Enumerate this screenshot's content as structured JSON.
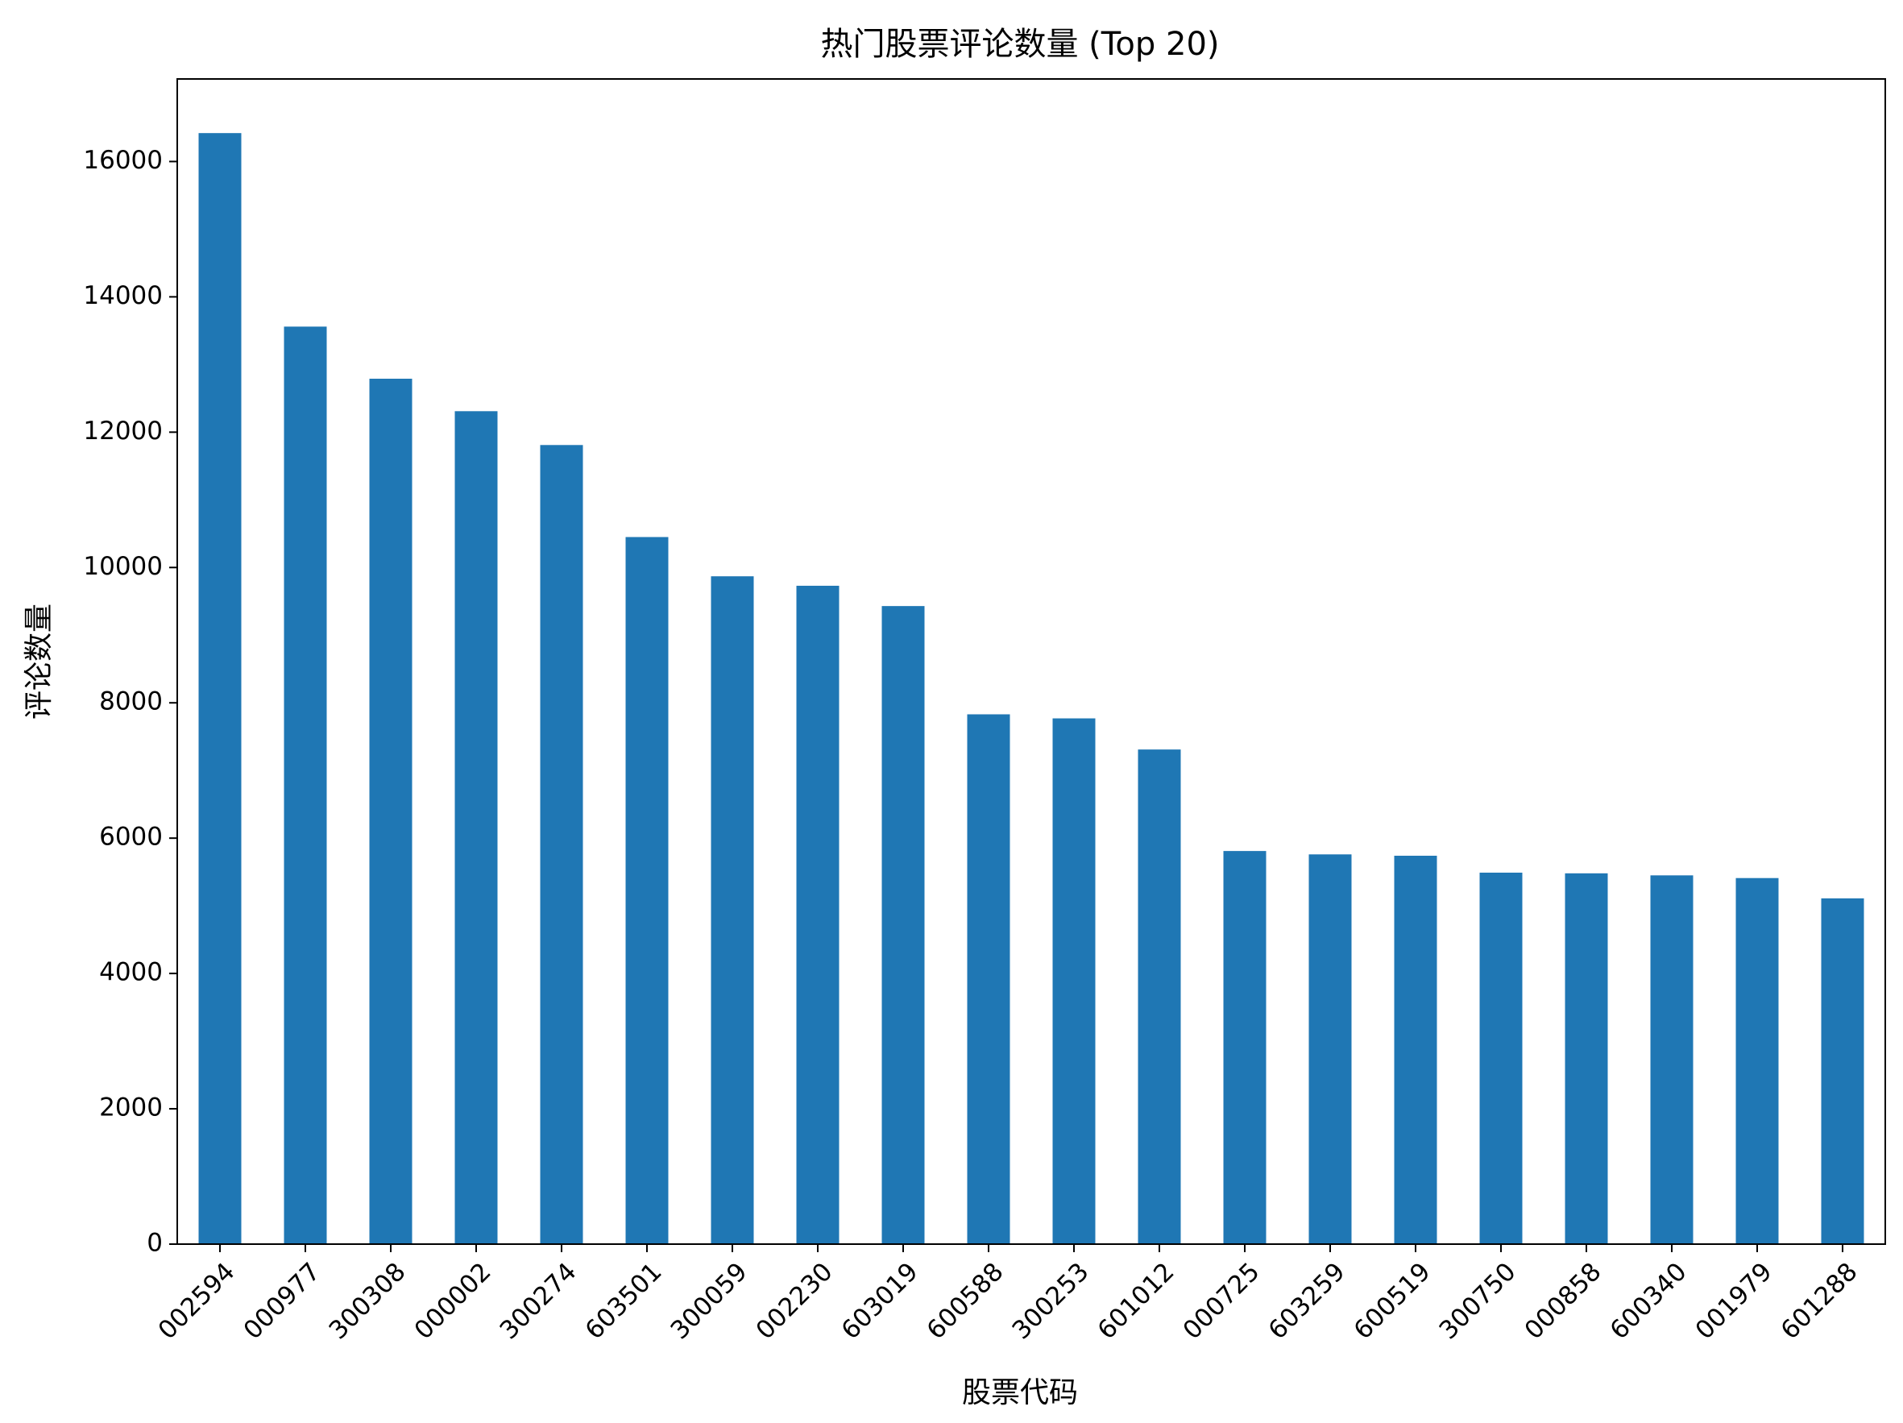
{
  "chart_data": {
    "type": "bar",
    "title": "热门股票评论数量 (Top 20)",
    "xlabel": "股票代码",
    "ylabel": "评论数量",
    "categories": [
      "002594",
      "000977",
      "300308",
      "000002",
      "300274",
      "603501",
      "300059",
      "002230",
      "603019",
      "600588",
      "300253",
      "601012",
      "000725",
      "603259",
      "600519",
      "300750",
      "000858",
      "600340",
      "001979",
      "601288"
    ],
    "values": [
      16420,
      13560,
      12790,
      12310,
      11810,
      10450,
      9870,
      9730,
      9430,
      7830,
      7770,
      7310,
      5810,
      5760,
      5740,
      5490,
      5480,
      5450,
      5410,
      5110
    ],
    "ylim": [
      0,
      17220
    ],
    "yticks": [
      0,
      2000,
      4000,
      6000,
      8000,
      10000,
      12000,
      14000,
      16000
    ],
    "color": "#1f77b4",
    "grid": false,
    "legend": "none"
  }
}
